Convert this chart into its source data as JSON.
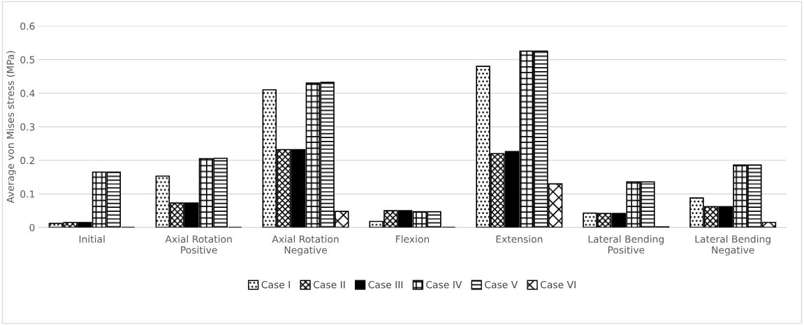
{
  "chart_data": {
    "type": "bar",
    "ylabel": "Average von Mises stress (MPa)",
    "categories": [
      "Initial",
      "Axial Rotation\nPositive",
      "Axial Rotation\nNegative",
      "Flexion",
      "Extension",
      "Lateral Bending\nPositive",
      "Lateral Bending\nNegative"
    ],
    "series": [
      {
        "name": "Case I",
        "color": "#000000",
        "values": [
          0.012,
          0.153,
          0.41,
          0.018,
          0.48,
          0.043,
          0.088
        ]
      },
      {
        "name": "Case II",
        "color": "#000000",
        "values": [
          0.015,
          0.073,
          0.232,
          0.05,
          0.22,
          0.042,
          0.062
        ]
      },
      {
        "name": "Case III",
        "color": "#000000",
        "values": [
          0.015,
          0.073,
          0.232,
          0.05,
          0.226,
          0.042,
          0.062
        ]
      },
      {
        "name": "Case IV",
        "color": "#000000",
        "values": [
          0.165,
          0.205,
          0.43,
          0.047,
          0.525,
          0.136,
          0.186
        ]
      },
      {
        "name": "Case V",
        "color": "#000000",
        "values": [
          0.165,
          0.206,
          0.432,
          0.047,
          0.525,
          0.136,
          0.186
        ]
      },
      {
        "name": "Case VI",
        "color": "#000000",
        "values": [
          0,
          0,
          0.048,
          0,
          0.13,
          0.002,
          0.015
        ]
      }
    ],
    "ylim": [
      0,
      0.6
    ],
    "yticks": [
      {
        "value": 0,
        "label": "0"
      },
      0.1,
      0.2,
      0.3,
      0.4,
      0.5,
      0.6
    ],
    "grid": "y",
    "legend": "bottom"
  }
}
